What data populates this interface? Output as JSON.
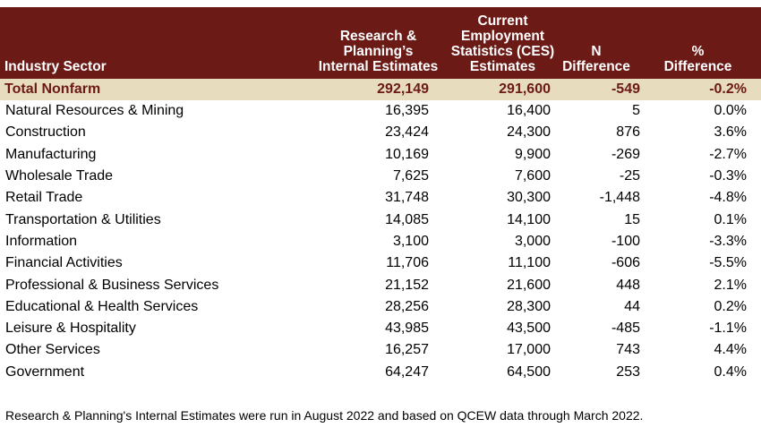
{
  "headers": {
    "sector": "Industry Sector",
    "internal": [
      "Research &",
      "Planning’s",
      "Internal Estimates"
    ],
    "ces": [
      "Current",
      "Employment",
      "Statistics (CES)",
      "Estimates"
    ],
    "ndiff": [
      "N",
      "Difference"
    ],
    "pdiff": [
      "%",
      "Difference"
    ]
  },
  "total": {
    "sector": "Total Nonfarm",
    "internal": "292,149",
    "ces": "291,600",
    "ndiff": "-549",
    "pdiff": "-0.2%"
  },
  "rows": [
    {
      "sector": "Natural Resources & Mining",
      "internal": "16,395",
      "ces": "16,400",
      "ndiff": "5",
      "pdiff": "0.0%"
    },
    {
      "sector": "Construction",
      "internal": "23,424",
      "ces": "24,300",
      "ndiff": "876",
      "pdiff": "3.6%"
    },
    {
      "sector": "Manufacturing",
      "internal": "10,169",
      "ces": "9,900",
      "ndiff": "-269",
      "pdiff": "-2.7%"
    },
    {
      "sector": "Wholesale Trade",
      "internal": "7,625",
      "ces": "7,600",
      "ndiff": "-25",
      "pdiff": "-0.3%"
    },
    {
      "sector": "Retail Trade",
      "internal": "31,748",
      "ces": "30,300",
      "ndiff": "-1,448",
      "pdiff": "-4.8%"
    },
    {
      "sector": "Transportation & Utilities",
      "internal": "14,085",
      "ces": "14,100",
      "ndiff": "15",
      "pdiff": "0.1%"
    },
    {
      "sector": "Information",
      "internal": "3,100",
      "ces": "3,000",
      "ndiff": "-100",
      "pdiff": "-3.3%"
    },
    {
      "sector": "Financial Activities",
      "internal": "11,706",
      "ces": "11,100",
      "ndiff": "-606",
      "pdiff": "-5.5%"
    },
    {
      "sector": "Professional & Business Services",
      "internal": "21,152",
      "ces": "21,600",
      "ndiff": "448",
      "pdiff": "2.1%"
    },
    {
      "sector": "Educational & Health Services",
      "internal": "28,256",
      "ces": "28,300",
      "ndiff": "44",
      "pdiff": "0.2%"
    },
    {
      "sector": "Leisure & Hospitality",
      "internal": "43,985",
      "ces": "43,500",
      "ndiff": "-485",
      "pdiff": "-1.1%"
    },
    {
      "sector": "Other Services",
      "internal": "16,257",
      "ces": "17,000",
      "ndiff": "743",
      "pdiff": "4.4%"
    },
    {
      "sector": "Government",
      "internal": "64,247",
      "ces": "64,500",
      "ndiff": "253",
      "pdiff": "0.4%"
    }
  ],
  "footnote": "Research & Planning's Internal Estimates were run in August 2022 and based on QCEW data through March 2022.",
  "colors": {
    "header_bg": "#6b1a16",
    "header_text": "#ffffff",
    "total_bg": "#e8dcbe",
    "total_text": "#6b1a16"
  }
}
